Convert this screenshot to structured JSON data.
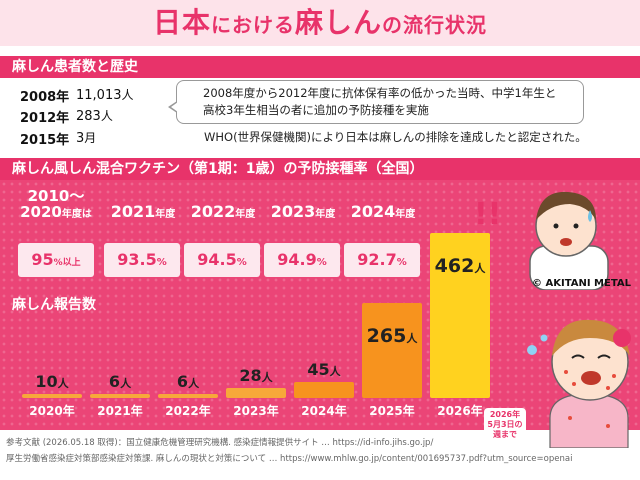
{
  "title": {
    "part1": "日本",
    "part2": "における",
    "part3": "麻しん",
    "part4": "の流行状況"
  },
  "history": {
    "heading": "麻しん患者数と歴史",
    "rows": [
      {
        "year": "2008年",
        "value": "11,013",
        "unit": "人"
      },
      {
        "year": "2012年",
        "value": "283",
        "unit": "人"
      },
      {
        "year": "2015年",
        "value": "3",
        "unit": "月"
      }
    ],
    "note_line1": "2008年度から2012年度に抗体保有率の低かった当時、中学1年生と",
    "note_line2": "高校3年生相当の者に追加の予防接種を実施",
    "who_note": "WHO(世界保健機関)により日本は麻しんの排除を達成したと認定された。"
  },
  "vaccine": {
    "heading": "麻しん風しん混合ワクチン（第1期：1歳）の予防接種率（全国）",
    "items": [
      {
        "head_line1": "2010～",
        "head_line2": "2020",
        "head_unit": "年度は",
        "value": "95",
        "unit": "%以上"
      },
      {
        "head_line1": "",
        "head_line2": "2021",
        "head_unit": "年度",
        "value": "93.5",
        "unit": "%"
      },
      {
        "head_line1": "",
        "head_line2": "2022",
        "head_unit": "年度",
        "value": "94.5",
        "unit": "%"
      },
      {
        "head_line1": "",
        "head_line2": "2023",
        "head_unit": "年度",
        "value": "94.9",
        "unit": "%"
      },
      {
        "head_line1": "",
        "head_line2": "2024",
        "head_unit": "年度",
        "value": "92.7",
        "unit": "%"
      }
    ]
  },
  "reports": {
    "heading": "麻しん報告数",
    "unit": "人",
    "caption_line1": "2026年",
    "caption_line2": "5月3日の",
    "caption_line3": "週まで"
  },
  "chart_data": {
    "type": "bar",
    "categories": [
      "2020年",
      "2021年",
      "2022年",
      "2023年",
      "2024年",
      "2025年",
      "2026年"
    ],
    "values": [
      10,
      6,
      6,
      28,
      45,
      265,
      462
    ],
    "title": "麻しん報告数",
    "ylim": [
      0,
      462
    ],
    "colors": [
      "#f7a83a",
      "#f7a83a",
      "#f7a83a",
      "#f7a83a",
      "#f7931e",
      "#f7931e",
      "#ffd21f"
    ]
  },
  "copyright": "© AKITANI METAL",
  "references": {
    "line1": "参考文献 (2026.05.18 取得)：国立健康危機管理研究機構. 感染症情報提供サイト … https://id-info.jihs.go.jp/",
    "line2": "厚生労働省感染症対策部感染症対策課. 麻しんの現状と対策について … https://www.mhlw.go.jp/content/001695737.pdf?utm_source=openai"
  },
  "colors": {
    "accent": "#e8336a",
    "panel": "#eb4577",
    "title_bg": "#fde3ea"
  }
}
